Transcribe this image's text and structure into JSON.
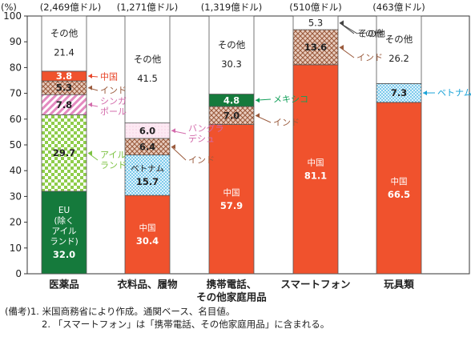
{
  "chart_data": {
    "type": "bar",
    "stacked": true,
    "unit_label": "(%)",
    "ylim": [
      0,
      100
    ],
    "yticks": [
      0,
      10,
      20,
      30,
      40,
      50,
      60,
      70,
      80,
      90,
      100
    ],
    "categories": [
      {
        "label": "医薬品",
        "total": "(2,469億ドル)"
      },
      {
        "label": "衣料品、履物",
        "total": "(1,271億ドル)"
      },
      {
        "label": "携帯電話、\nその他家庭用品",
        "total": "(1,319億ドル)"
      },
      {
        "label": "スマートフォン",
        "total": "(510億ドル)"
      },
      {
        "label": "玩具類",
        "total": "(463億ドル)"
      }
    ],
    "bars": [
      [
        {
          "name": "EU\n(除く\nアイル\nランド)",
          "value": 32.0,
          "label": "32.0",
          "fill": "solid",
          "color": "#157a3c",
          "text_color": "#ffffff"
        },
        {
          "name": "アイル\nランド",
          "value": 29.7,
          "label": "29.7",
          "fill": "checker",
          "color": "#8fcd4a",
          "text_color": "#222222",
          "callout_color": "#7cc242"
        },
        {
          "name": "シンガ\nポール",
          "value": 7.8,
          "label": "7.8",
          "fill": "stripe",
          "color": "#e48ac0",
          "text_color": "#222222",
          "callout_color": "#d36bab"
        },
        {
          "name": "インド",
          "value": 5.3,
          "label": "5.3",
          "fill": "cross",
          "color": "#b97a62",
          "text_color": "#222222",
          "callout_color": "#9a5a3c"
        },
        {
          "name": "中国",
          "value": 3.8,
          "label": "3.8",
          "fill": "solid",
          "color": "#f0522d",
          "text_color": "#ffffff",
          "callout_color": "#e8462a"
        },
        {
          "name": "その他",
          "value": 21.4,
          "label": "21.4",
          "fill": "solid",
          "color": "#ffffff",
          "text_color": "#222222"
        }
      ],
      [
        {
          "name": "中国",
          "value": 30.4,
          "label": "30.4",
          "fill": "solid",
          "color": "#f0522d",
          "text_color": "#ffffff"
        },
        {
          "name": "ベトナム",
          "value": 15.7,
          "label": "15.7",
          "fill": "dots",
          "color": "#3ab0e2",
          "text_color": "#222222"
        },
        {
          "name": "インド",
          "value": 6.4,
          "label": "6.4",
          "fill": "cross",
          "color": "#b97a62",
          "text_color": "#222222",
          "callout_color": "#9a5a3c"
        },
        {
          "name": "バングラ\nデシュ",
          "value": 6.0,
          "label": "6.0",
          "fill": "light",
          "color": "#fbe3ef",
          "text_color": "#222222",
          "callout_color": "#d36bab"
        },
        {
          "name": "その他",
          "value": 41.5,
          "label": "41.5",
          "fill": "solid",
          "color": "#ffffff",
          "text_color": "#222222"
        }
      ],
      [
        {
          "name": "中国",
          "value": 57.9,
          "label": "57.9",
          "fill": "solid",
          "color": "#f0522d",
          "text_color": "#ffffff"
        },
        {
          "name": "インド",
          "value": 7.0,
          "label": "7.0",
          "fill": "cross",
          "color": "#b97a62",
          "text_color": "#222222",
          "callout_color": "#9a5a3c"
        },
        {
          "name": "メキシコ",
          "value": 4.8,
          "label": "4.8",
          "fill": "solid",
          "color": "#157a3c",
          "text_color": "#ffffff",
          "callout_color": "#13a05a"
        },
        {
          "name": "その他",
          "value": 30.3,
          "label": "30.3",
          "fill": "solid",
          "color": "#ffffff",
          "text_color": "#222222"
        }
      ],
      [
        {
          "name": "中国",
          "value": 81.1,
          "label": "81.1",
          "fill": "solid",
          "color": "#f0522d",
          "text_color": "#ffffff"
        },
        {
          "name": "インド",
          "value": 13.6,
          "label": "13.6",
          "fill": "cross",
          "color": "#b97a62",
          "text_color": "#222222",
          "callout_color": "#9a5a3c"
        },
        {
          "name": "その他",
          "value": 5.3,
          "label": "5.3",
          "fill": "solid",
          "color": "#ffffff",
          "text_color": "#222222"
        }
      ],
      [
        {
          "name": "中国",
          "value": 66.5,
          "label": "66.5",
          "fill": "solid",
          "color": "#f0522d",
          "text_color": "#ffffff"
        },
        {
          "name": "ベトナム",
          "value": 7.3,
          "label": "7.3",
          "fill": "dots",
          "color": "#3ab0e2",
          "text_color": "#222222",
          "callout_color": "#1aa3d8"
        },
        {
          "name": "その他",
          "value": 26.2,
          "label": "26.2",
          "fill": "solid",
          "color": "#ffffff",
          "text_color": "#222222"
        }
      ]
    ]
  },
  "notes": {
    "prefix": "(備考)",
    "items": [
      {
        "num": "1.",
        "text": "米国商務省により作成。通関ベース、名目値。"
      },
      {
        "num": "2.",
        "text": "「スマートフォン」は「携帯電話、その他家庭用品」に含まれる。"
      }
    ]
  }
}
